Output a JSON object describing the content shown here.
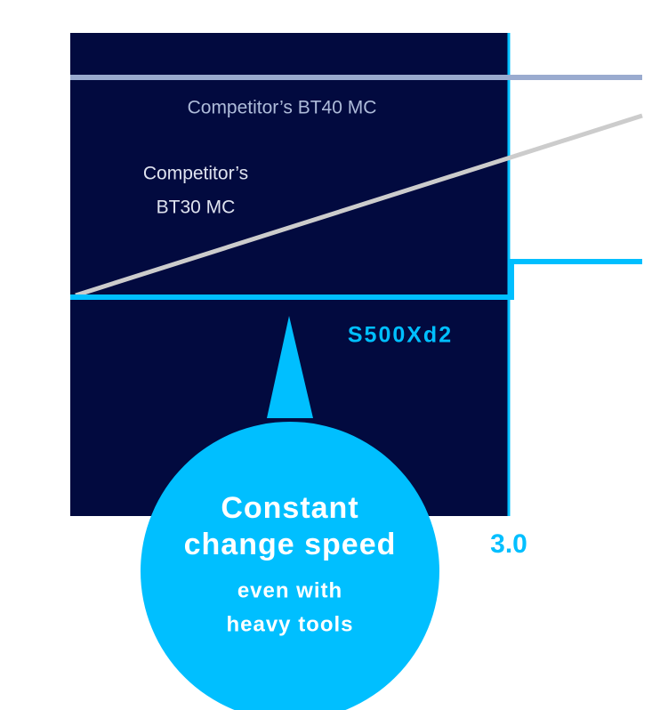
{
  "labels": {
    "bt40": "Competitor’s BT40 MC",
    "bt30": [
      "Competitor’s",
      "BT30 MC"
    ],
    "s500": "S500Xd2",
    "x_value": "3.0"
  },
  "callout": {
    "title": [
      "Constant",
      "change speed"
    ],
    "subtitle": [
      "even with",
      "heavy tools"
    ]
  }
}
